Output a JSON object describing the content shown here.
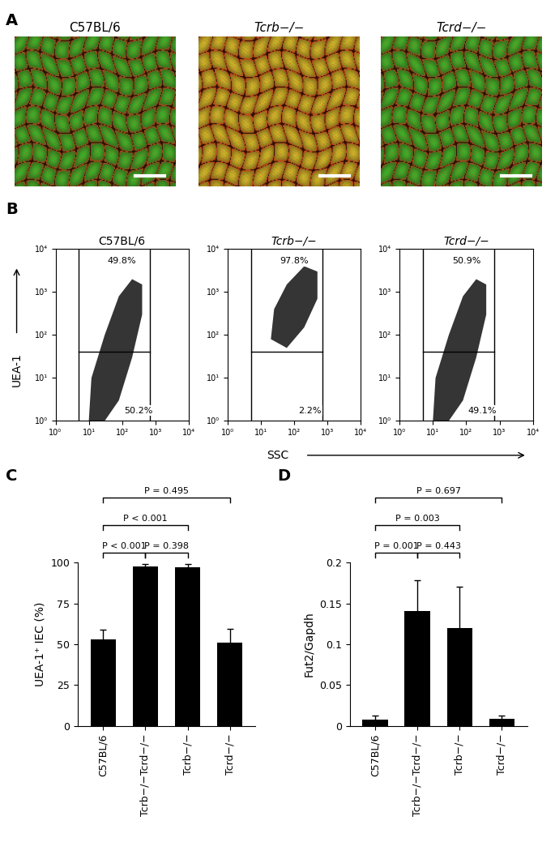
{
  "panel_labels": [
    "A",
    "B",
    "C",
    "D"
  ],
  "flow_x_label": "SSC",
  "flow_y_label": "UEA-1",
  "chart_data": [
    {
      "type": "image",
      "title": "C57BL/6",
      "color": "#3fae2a"
    },
    {
      "type": "image",
      "title": "Tcrb−/−",
      "color": "#c8b42a"
    },
    {
      "type": "image",
      "title": "Tcrd−/−",
      "color": "#3fae2a"
    },
    {
      "type": "scatter",
      "title": "C57BL/6",
      "log": true,
      "color": "#111111",
      "xlim": [
        1,
        10000
      ],
      "ylim": [
        1,
        10000
      ],
      "xticks": [
        {
          "value": 1,
          "label": "10⁰"
        },
        {
          "value": 10,
          "label": "10¹"
        },
        {
          "value": 100,
          "label": "10²"
        },
        {
          "value": 1000,
          "label": "10³"
        },
        {
          "value": 10000,
          "label": "10⁴"
        }
      ],
      "yticks": [
        {
          "value": 1,
          "label": "10⁰"
        },
        {
          "value": 10,
          "label": "10¹"
        },
        {
          "value": 100,
          "label": "10²"
        },
        {
          "value": 1000,
          "label": "10³"
        },
        {
          "value": 10000,
          "label": "10⁴"
        }
      ],
      "gate": {
        "x": [
          5,
          700
        ],
        "y": 40
      },
      "gate_labels": [
        "49.8%",
        "50.2%"
      ],
      "population": [
        [
          10,
          1
        ],
        [
          30,
          1
        ],
        [
          80,
          3
        ],
        [
          200,
          30
        ],
        [
          400,
          300
        ],
        [
          400,
          1500
        ],
        [
          200,
          2000
        ],
        [
          80,
          800
        ],
        [
          30,
          100
        ],
        [
          12,
          10
        ]
      ]
    },
    {
      "type": "scatter",
      "title": "Tcrb−/−",
      "log": true,
      "color": "#111111",
      "xlim": [
        1,
        10000
      ],
      "ylim": [
        1,
        10000
      ],
      "xticks": [
        {
          "value": 1,
          "label": "10⁰"
        },
        {
          "value": 10,
          "label": "10¹"
        },
        {
          "value": 100,
          "label": "10²"
        },
        {
          "value": 1000,
          "label": "10³"
        },
        {
          "value": 10000,
          "label": "10⁴"
        }
      ],
      "yticks": [
        {
          "value": 1,
          "label": "10⁰"
        },
        {
          "value": 10,
          "label": "10¹"
        },
        {
          "value": 100,
          "label": "10²"
        },
        {
          "value": 1000,
          "label": "10³"
        },
        {
          "value": 10000,
          "label": "10⁴"
        }
      ],
      "gate": {
        "x": [
          5,
          700
        ],
        "y": 40
      },
      "gate_labels": [
        "97.8%",
        "2.2%"
      ],
      "population": [
        [
          20,
          80
        ],
        [
          60,
          50
        ],
        [
          200,
          150
        ],
        [
          500,
          700
        ],
        [
          500,
          3000
        ],
        [
          200,
          4000
        ],
        [
          60,
          1500
        ],
        [
          25,
          400
        ]
      ]
    },
    {
      "type": "scatter",
      "title": "Tcrd−/−",
      "log": true,
      "color": "#111111",
      "xlim": [
        1,
        10000
      ],
      "ylim": [
        1,
        10000
      ],
      "xticks": [
        {
          "value": 1,
          "label": "10⁰"
        },
        {
          "value": 10,
          "label": "10¹"
        },
        {
          "value": 100,
          "label": "10²"
        },
        {
          "value": 1000,
          "label": "10³"
        },
        {
          "value": 10000,
          "label": "10⁴"
        }
      ],
      "yticks": [
        {
          "value": 1,
          "label": "10⁰"
        },
        {
          "value": 10,
          "label": "10¹"
        },
        {
          "value": 100,
          "label": "10²"
        },
        {
          "value": 1000,
          "label": "10³"
        },
        {
          "value": 10000,
          "label": "10⁴"
        }
      ],
      "gate": {
        "x": [
          5,
          700
        ],
        "y": 40
      },
      "gate_labels": [
        "50.9%",
        "49.1%"
      ],
      "population": [
        [
          10,
          1
        ],
        [
          30,
          1
        ],
        [
          80,
          3
        ],
        [
          200,
          30
        ],
        [
          400,
          300
        ],
        [
          400,
          1500
        ],
        [
          200,
          2000
        ],
        [
          80,
          800
        ],
        [
          30,
          100
        ],
        [
          12,
          10
        ]
      ]
    },
    {
      "type": "bar",
      "y_label": "UEA-1⁺ IEC (%)",
      "color": "#000000",
      "categories": [
        "C57BL/6",
        "Tcrb−/−Tcrd−/−",
        "Tcrb−/−",
        "Tcrd−/−"
      ],
      "values": [
        53,
        97.5,
        97,
        51
      ],
      "errors": [
        6,
        1.5,
        2,
        8.5
      ],
      "ylim": [
        0,
        100
      ],
      "yticks": [
        0,
        25,
        50,
        75,
        100
      ],
      "comparisons": [
        {
          "from": 0,
          "to": 3,
          "label": "P = 0.495"
        },
        {
          "from": 0,
          "to": 2,
          "label": "P < 0.001"
        },
        {
          "from": 0,
          "to": 1,
          "label": "P < 0.001"
        },
        {
          "from": 1,
          "to": 2,
          "label": "P = 0.398"
        }
      ]
    },
    {
      "type": "bar",
      "y_label": "Fut2/Gapdh",
      "color": "#000000",
      "categories": [
        "C57BL/6",
        "Tcrb−/−Tcrd−/−",
        "Tcrb−/−",
        "Tcrd−/−"
      ],
      "values": [
        0.008,
        0.141,
        0.12,
        0.009
      ],
      "errors": [
        0.005,
        0.037,
        0.051,
        0.004
      ],
      "ylim": [
        0,
        0.2
      ],
      "yticks": [
        0,
        0.05,
        0.1,
        0.15,
        0.2
      ],
      "comparisons": [
        {
          "from": 0,
          "to": 3,
          "label": "P = 0.697"
        },
        {
          "from": 0,
          "to": 2,
          "label": "P = 0.003"
        },
        {
          "from": 0,
          "to": 1,
          "label": "P = 0.001"
        },
        {
          "from": 1,
          "to": 2,
          "label": "P = 0.443"
        }
      ]
    }
  ]
}
